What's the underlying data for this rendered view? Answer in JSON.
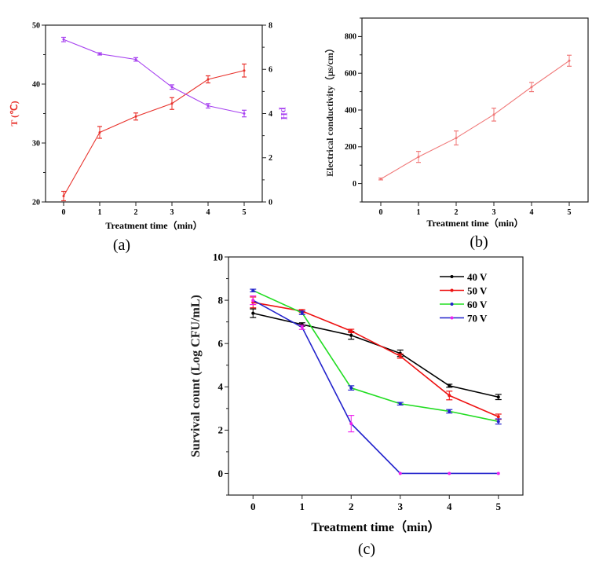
{
  "chart_data": [
    {
      "type": "line",
      "caption": "(a)",
      "xlabel": "Treatment time（min）",
      "x": [
        0,
        1,
        2,
        3,
        4,
        5
      ],
      "xlim": [
        -0.5,
        5.5
      ],
      "ylabel": "T (℃)",
      "ylim": [
        20,
        50
      ],
      "yticks": [
        20,
        30,
        40,
        50
      ],
      "y2label": "pH",
      "y2lim": [
        0,
        8
      ],
      "y2ticks": [
        0,
        2,
        4,
        6,
        8
      ],
      "series": [
        {
          "axis": "left",
          "color": "#e8302a",
          "values": [
            21.0,
            31.8,
            34.5,
            36.7,
            40.8,
            42.3
          ],
          "errors": [
            0.8,
            1.0,
            0.6,
            1.0,
            0.6,
            1.1
          ]
        },
        {
          "axis": "right",
          "color": "#a640f0",
          "values": [
            7.35,
            6.7,
            6.45,
            5.2,
            4.35,
            4.0
          ],
          "errors": [
            0.1,
            0.05,
            0.08,
            0.1,
            0.1,
            0.15
          ]
        }
      ]
    },
    {
      "type": "line",
      "caption": "(b)",
      "xlabel": "Treatment time（min）",
      "x": [
        0,
        1,
        2,
        3,
        4,
        5
      ],
      "xlim": [
        -0.5,
        5.5
      ],
      "ylabel": "Electrical conductivity（μs/cm）",
      "ylim": [
        -100,
        900
      ],
      "yticks": [
        0,
        200,
        400,
        600,
        800
      ],
      "series": [
        {
          "color": "#f07878",
          "values": [
            25,
            145,
            248,
            375,
            525,
            668
          ],
          "errors": [
            5,
            30,
            38,
            35,
            25,
            30
          ]
        }
      ]
    },
    {
      "type": "line",
      "caption": "(c)",
      "xlabel": "Treatment time（min）",
      "x": [
        0,
        1,
        2,
        3,
        4,
        5
      ],
      "xlim": [
        -0.5,
        5.5
      ],
      "ylabel": "Survival count (Log CFU/mL)",
      "ylim": [
        -1,
        10
      ],
      "yticks": [
        0,
        2,
        4,
        6,
        8,
        10
      ],
      "legend": "top-right",
      "series": [
        {
          "name": "40 V",
          "color": "#000000",
          "marker_color": "#000000",
          "values": [
            7.4,
            6.88,
            6.38,
            5.55,
            4.05,
            3.53
          ],
          "errors": [
            0.2,
            0.08,
            0.18,
            0.15,
            0.07,
            0.12
          ]
        },
        {
          "name": "50 V",
          "color": "#ee1111",
          "marker_color": "#ee1111",
          "values": [
            7.9,
            7.5,
            6.58,
            5.42,
            3.6,
            2.62
          ],
          "errors": [
            0.25,
            0.07,
            0.08,
            0.1,
            0.2,
            0.12
          ]
        },
        {
          "name": "60 V",
          "color": "#22dd22",
          "marker_color": "#2222cc",
          "values": [
            8.45,
            7.42,
            3.95,
            3.22,
            2.87,
            2.4
          ],
          "errors": [
            0.06,
            0.08,
            0.1,
            0.06,
            0.08,
            0.12
          ]
        },
        {
          "name": "70 V",
          "color": "#2222cc",
          "marker_color": "#ee22ee",
          "values": [
            8.0,
            6.75,
            2.3,
            0,
            0,
            0
          ],
          "errors": [
            0.2,
            0.1,
            0.38,
            0,
            0,
            0
          ]
        }
      ]
    }
  ]
}
